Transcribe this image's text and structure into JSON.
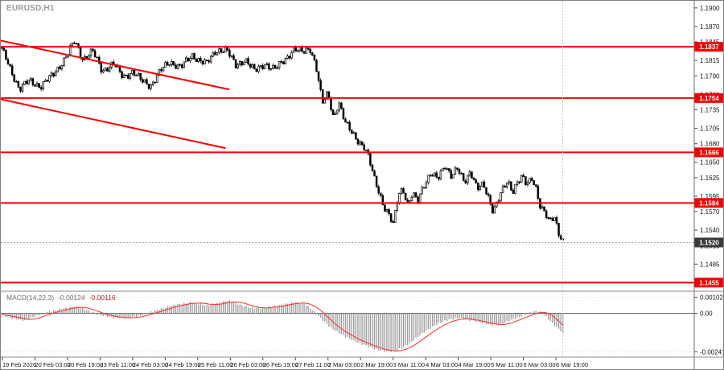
{
  "window": {
    "symbol_label": "EURUSD,H1"
  },
  "colors": {
    "background": "#ffffff",
    "candle": "#000000",
    "level": "#f40000",
    "trendline": "#f40000",
    "macd_histogram": "#9a9a9a",
    "macd_signal": "#ff2a2a",
    "bid_badge": "#3a3a3a",
    "axis_text": "#141414"
  },
  "chart_data": {
    "type": "candlestick",
    "symbol": "EURUSD",
    "timeframe": "H1",
    "title": "EURUSD,H1",
    "price_axis": {
      "max": 1.1905,
      "min": 1.1445,
      "ticks": [
        "1.1900",
        "1.1870",
        "1.1845",
        "1.1815",
        "1.1790",
        "1.1760",
        "1.1735",
        "1.1705",
        "1.1680",
        "1.1650",
        "1.1625",
        "1.1595",
        "1.1570",
        "1.1540",
        "1.1515",
        "1.1485"
      ]
    },
    "levels": [
      {
        "price": 1.1837,
        "label": "1.1837"
      },
      {
        "price": 1.1754,
        "label": "1.1754"
      },
      {
        "price": 1.1666,
        "label": "1.1666"
      },
      {
        "price": 1.1584,
        "label": "1.1584"
      },
      {
        "price": 1.1455,
        "label": "1.1455"
      }
    ],
    "bid": {
      "price": 1.152,
      "label": "1.1520"
    },
    "trendlines": [
      {
        "x1": 0.0,
        "p1": 1.1847,
        "x2": 0.405,
        "p2": 1.1768
      },
      {
        "x1": 0.0,
        "p1": 1.1752,
        "x2": 0.398,
        "p2": 1.1673
      }
    ],
    "candle_count": 272,
    "price_path": [
      [
        0.0,
        1.1836
      ],
      [
        0.014,
        1.1808
      ],
      [
        0.033,
        1.1768
      ],
      [
        0.05,
        1.1782
      ],
      [
        0.071,
        1.1773
      ],
      [
        0.093,
        1.1792
      ],
      [
        0.114,
        1.1818
      ],
      [
        0.131,
        1.1846
      ],
      [
        0.146,
        1.1817
      ],
      [
        0.163,
        1.183
      ],
      [
        0.18,
        1.1798
      ],
      [
        0.2,
        1.181
      ],
      [
        0.217,
        1.1788
      ],
      [
        0.234,
        1.1797
      ],
      [
        0.251,
        1.1781
      ],
      [
        0.266,
        1.1774
      ],
      [
        0.283,
        1.1798
      ],
      [
        0.3,
        1.1812
      ],
      [
        0.32,
        1.1805
      ],
      [
        0.34,
        1.1822
      ],
      [
        0.366,
        1.181
      ],
      [
        0.383,
        1.1831
      ],
      [
        0.4,
        1.1834
      ],
      [
        0.417,
        1.1806
      ],
      [
        0.434,
        1.1817
      ],
      [
        0.451,
        1.1797
      ],
      [
        0.469,
        1.181
      ],
      [
        0.486,
        1.18
      ],
      [
        0.503,
        1.1815
      ],
      [
        0.52,
        1.1833
      ],
      [
        0.537,
        1.1828
      ],
      [
        0.549,
        1.1836
      ],
      [
        0.56,
        1.1805
      ],
      [
        0.571,
        1.1745
      ],
      [
        0.581,
        1.1762
      ],
      [
        0.591,
        1.1722
      ],
      [
        0.6,
        1.1748
      ],
      [
        0.611,
        1.1714
      ],
      [
        0.623,
        1.17
      ],
      [
        0.634,
        1.1686
      ],
      [
        0.646,
        1.1672
      ],
      [
        0.654,
        1.1655
      ],
      [
        0.663,
        1.1625
      ],
      [
        0.671,
        1.1605
      ],
      [
        0.68,
        1.1578
      ],
      [
        0.69,
        1.1562
      ],
      [
        0.697,
        1.1548
      ],
      [
        0.706,
        1.16
      ],
      [
        0.714,
        1.1608
      ],
      [
        0.723,
        1.158
      ],
      [
        0.731,
        1.1598
      ],
      [
        0.74,
        1.1586
      ],
      [
        0.75,
        1.1612
      ],
      [
        0.763,
        1.1632
      ],
      [
        0.776,
        1.1622
      ],
      [
        0.789,
        1.1646
      ],
      [
        0.8,
        1.1629
      ],
      [
        0.811,
        1.1639
      ],
      [
        0.823,
        1.1616
      ],
      [
        0.834,
        1.1637
      ],
      [
        0.846,
        1.1608
      ],
      [
        0.857,
        1.1612
      ],
      [
        0.866,
        1.1592
      ],
      [
        0.874,
        1.1572
      ],
      [
        0.883,
        1.159
      ],
      [
        0.891,
        1.1605
      ],
      [
        0.9,
        1.1617
      ],
      [
        0.909,
        1.1602
      ],
      [
        0.917,
        1.162
      ],
      [
        0.926,
        1.1628
      ],
      [
        0.934,
        1.1612
      ],
      [
        0.943,
        1.1622
      ],
      [
        0.951,
        1.1607
      ],
      [
        0.958,
        1.158
      ],
      [
        0.966,
        1.157
      ],
      [
        0.974,
        1.1552
      ],
      [
        0.983,
        1.156
      ],
      [
        0.991,
        1.1535
      ],
      [
        1.0,
        1.1521
      ]
    ],
    "time_labels": [
      "19 Feb 2026",
      "20 Feb 03:00",
      "20 Feb 19:00",
      "23 Feb 11:00",
      "24 Feb 03:00",
      "24 Feb 19:00",
      "25 Feb 11:00",
      "26 Feb 03:00",
      "26 Feb 19:00",
      "27 Feb 11:00",
      "2 Mar 03:00",
      "2 Mar 19:00",
      "3 Mar 11:00",
      "4 Mar 03:00",
      "4 Mar 19:00",
      "5 Mar 11:00",
      "6 Mar 03:00",
      "6 Mar 19:00"
    ],
    "macd": {
      "name": "MACD(14,22,3)",
      "value_main": "-0.00124",
      "value_signal": "-0.00116",
      "scale": {
        "max": 0.0013,
        "min": -0.00265
      },
      "axis_labels": [
        {
          "label": "0.00102",
          "value": 0.00102
        },
        {
          "label": "0.00",
          "value": 0
        },
        {
          "label": "-0.00241",
          "value": -0.00241
        }
      ],
      "path": [
        [
          0.0,
          -5e-05
        ],
        [
          0.02,
          -0.0003
        ],
        [
          0.04,
          -0.00045
        ],
        [
          0.06,
          -0.0002
        ],
        [
          0.085,
          0.0001
        ],
        [
          0.11,
          0.0003
        ],
        [
          0.131,
          0.00045
        ],
        [
          0.15,
          0.00025
        ],
        [
          0.175,
          -0.0001
        ],
        [
          0.2,
          -0.00025
        ],
        [
          0.225,
          -0.0003
        ],
        [
          0.25,
          -0.0001
        ],
        [
          0.28,
          0.00025
        ],
        [
          0.31,
          0.00055
        ],
        [
          0.34,
          0.0007
        ],
        [
          0.365,
          0.0005
        ],
        [
          0.385,
          0.00065
        ],
        [
          0.405,
          0.0008
        ],
        [
          0.425,
          0.00055
        ],
        [
          0.45,
          0.0003
        ],
        [
          0.475,
          0.0004
        ],
        [
          0.5,
          0.00055
        ],
        [
          0.52,
          0.0007
        ],
        [
          0.54,
          0.0006
        ],
        [
          0.557,
          0.0001
        ],
        [
          0.571,
          -0.0004
        ],
        [
          0.586,
          -0.0009
        ],
        [
          0.6,
          -0.0012
        ],
        [
          0.614,
          -0.0015
        ],
        [
          0.629,
          -0.00175
        ],
        [
          0.643,
          -0.00195
        ],
        [
          0.657,
          -0.00215
        ],
        [
          0.671,
          -0.0023
        ],
        [
          0.686,
          -0.0024
        ],
        [
          0.7,
          -0.00235
        ],
        [
          0.714,
          -0.00215
        ],
        [
          0.729,
          -0.0018
        ],
        [
          0.743,
          -0.0014
        ],
        [
          0.757,
          -0.00105
        ],
        [
          0.771,
          -0.00075
        ],
        [
          0.786,
          -0.0005
        ],
        [
          0.8,
          -0.00035
        ],
        [
          0.814,
          -0.0003
        ],
        [
          0.829,
          -0.0004
        ],
        [
          0.843,
          -0.0005
        ],
        [
          0.857,
          -0.0006
        ],
        [
          0.871,
          -0.00075
        ],
        [
          0.886,
          -0.0007
        ],
        [
          0.9,
          -0.0005
        ],
        [
          0.914,
          -0.0003
        ],
        [
          0.929,
          -0.0001
        ],
        [
          0.943,
          0.0001
        ],
        [
          0.954,
          0.00015
        ],
        [
          0.963,
          0.0
        ],
        [
          0.974,
          -0.0004
        ],
        [
          0.986,
          -0.00085
        ],
        [
          1.0,
          -0.00124
        ]
      ]
    }
  }
}
